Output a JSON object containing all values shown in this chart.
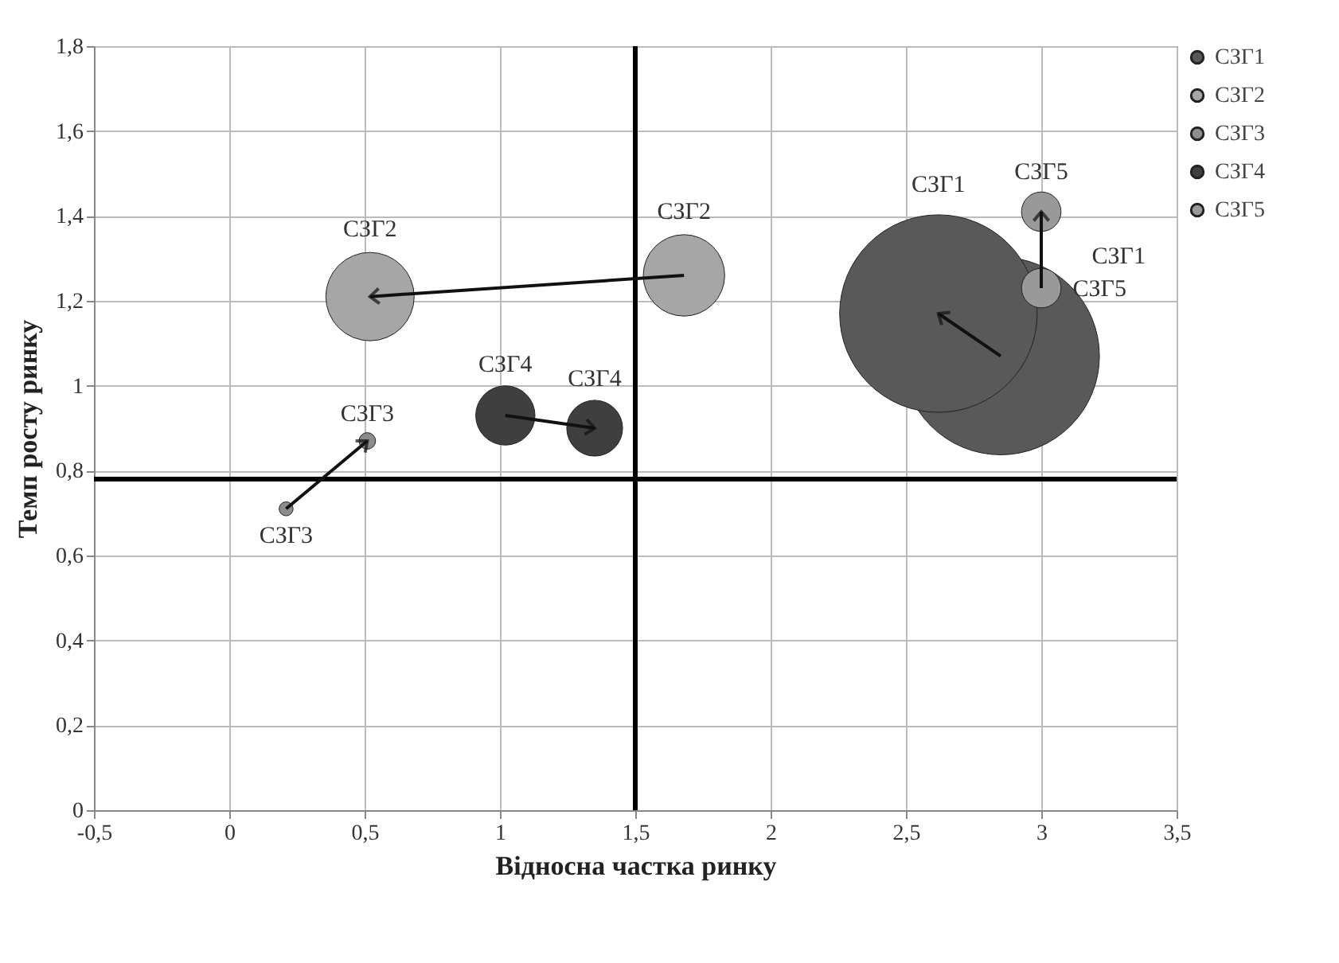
{
  "chart_data": {
    "type": "bubble",
    "xlabel": "Відносна частка ринку",
    "ylabel": "Темп  росту ринку",
    "xlim": [
      -0.5,
      3.5
    ],
    "ylim": [
      0,
      1.8
    ],
    "xticks": [
      {
        "value": -0.5,
        "label": "-0,5"
      },
      0,
      {
        "value": 0.5,
        "label": "0,5"
      },
      1,
      {
        "value": 1.5,
        "label": "1,5"
      },
      2,
      {
        "value": 2.5,
        "label": "2,5"
      },
      3,
      {
        "value": 3.5,
        "label": "3,5"
      }
    ],
    "yticks": [
      0,
      {
        "value": 0.2,
        "label": "0,2"
      },
      {
        "value": 0.4,
        "label": "0,4"
      },
      {
        "value": 0.6,
        "label": "0,6"
      },
      {
        "value": 0.8,
        "label": "0,8"
      },
      1,
      {
        "value": 1.2,
        "label": "1,2"
      },
      {
        "value": 1.4,
        "label": "1,4"
      },
      {
        "value": 1.6,
        "label": "1,6"
      },
      {
        "value": 1.8,
        "label": "1,8"
      }
    ],
    "grid": true,
    "legend": "right",
    "ref_lines": [
      {
        "axis": "x",
        "value": 1.5,
        "color": "#000000"
      },
      {
        "axis": "y",
        "value": 0.78,
        "color": "#000000"
      }
    ],
    "series": [
      {
        "name": "СЗГ1",
        "color": "#595959",
        "x": [
          2.85,
          2.62
        ],
        "values": [
          1.07,
          1.17
        ],
        "sizes": [
          1,
          1
        ]
      },
      {
        "name": "СЗГ2",
        "color": "#a6a6a6",
        "x": [
          1.68,
          0.52
        ],
        "values": [
          1.26,
          1.21
        ],
        "sizes": [
          0.17,
          0.2
        ]
      },
      {
        "name": "СЗГ3",
        "color": "#8c8c8c",
        "x": [
          0.21,
          0.51
        ],
        "values": [
          0.71,
          0.87
        ],
        "sizes": [
          0.005,
          0.007
        ]
      },
      {
        "name": "СЗГ4",
        "color": "#3f3f3f",
        "x": [
          1.02,
          1.35
        ],
        "values": [
          0.93,
          0.9
        ],
        "sizes": [
          0.09,
          0.08
        ]
      },
      {
        "name": "СЗГ5",
        "color": "#999999",
        "x": [
          3.0,
          3.0
        ],
        "values": [
          1.23,
          1.41
        ],
        "sizes": [
          0.04,
          0.04
        ]
      }
    ]
  }
}
